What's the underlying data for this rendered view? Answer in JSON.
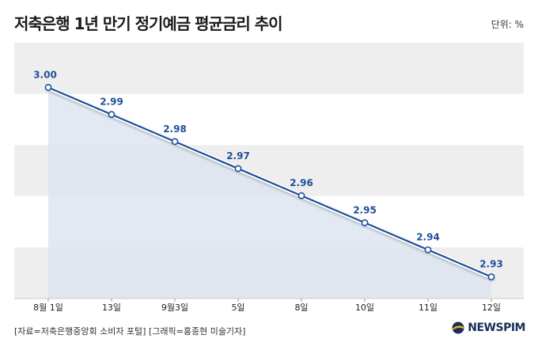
{
  "header": {
    "title": "저축은행 1년 만기 정기예금 평균금리 추이",
    "unit": "단위: %"
  },
  "footer": {
    "source": "[자료=저축은행중앙회 소비자 포털] [그래픽=홍종현 미술기자]",
    "logo_text": "NEWSPIM"
  },
  "colors": {
    "line": "#1f4f9a",
    "band": "#eeeeee",
    "area": "#dbe4f0",
    "label": "#1f4f9a"
  },
  "chart_data": {
    "type": "area",
    "title": "저축은행 1년 만기 정기예금 평균금리 추이",
    "ylabel": "",
    "xlabel": "",
    "unit": "%",
    "categories": [
      "8월 1일",
      "13일",
      "9월3일",
      "5일",
      "8일",
      "10일",
      "11일",
      "12일"
    ],
    "series": [
      {
        "values": [
          3.0,
          2.99,
          2.98,
          2.97,
          2.96,
          2.95,
          2.94,
          2.93
        ]
      }
    ],
    "value_labels": [
      "3.00",
      "2.99",
      "2.98",
      "2.97",
      "2.96",
      "2.95",
      "2.94",
      "2.93"
    ],
    "ylim": [
      2.922,
      3.0165
    ],
    "grid": "horizontal bands",
    "legend": "none"
  }
}
